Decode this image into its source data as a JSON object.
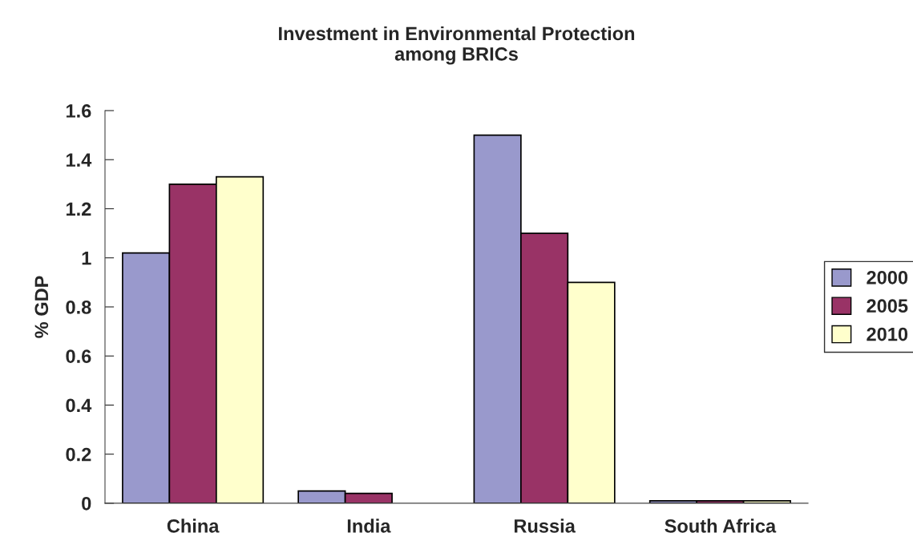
{
  "chart_data": {
    "type": "bar",
    "title": "Investment in Environmental Protection\namong BRICs",
    "ylabel": "% GDP",
    "categories": [
      "China",
      "India",
      "Russia",
      "South Africa"
    ],
    "series": [
      {
        "name": "2000",
        "color": "#9999cc",
        "values": [
          1.02,
          0.05,
          1.5,
          0.01
        ]
      },
      {
        "name": "2005",
        "color": "#993366",
        "values": [
          1.3,
          0.04,
          1.1,
          0.01
        ]
      },
      {
        "name": "2010",
        "color": "#ffffcc",
        "values": [
          1.33,
          null,
          0.9,
          0.01
        ]
      }
    ],
    "ylim": [
      0,
      1.6
    ],
    "yticks": [
      0,
      0.2,
      0.4,
      0.6,
      0.8,
      1,
      1.2,
      1.4,
      1.6
    ],
    "grid": false,
    "legend": "right"
  }
}
